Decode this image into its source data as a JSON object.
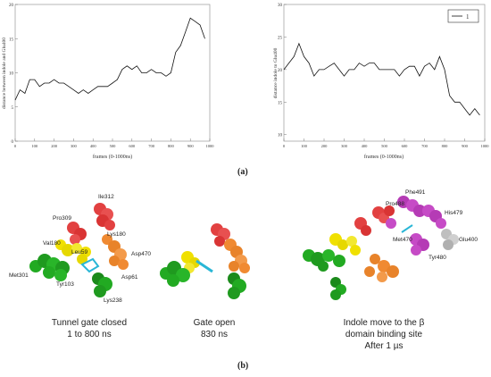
{
  "panel_a": {
    "label": "(a)"
  },
  "panel_b": {
    "label": "(b)"
  },
  "chart_data": [
    {
      "type": "line",
      "title": "",
      "xlabel": "frames (0-1000ns)",
      "ylabel": "distance between indole and Glu400",
      "xlim": [
        0,
        1000
      ],
      "ylim": [
        0,
        20
      ],
      "xticks": [
        0,
        100,
        200,
        300,
        400,
        500,
        600,
        700,
        800,
        900,
        1000
      ],
      "yticks": [
        0,
        5,
        10,
        15,
        20
      ],
      "grid": false,
      "series": [
        {
          "x": [
            0,
            25,
            50,
            75,
            100,
            125,
            150,
            175,
            200,
            225,
            250,
            275,
            300,
            325,
            350,
            375,
            400,
            425,
            450,
            475,
            500,
            525,
            550,
            575,
            600,
            625,
            650,
            675,
            700,
            725,
            750,
            775,
            800,
            825,
            850,
            875,
            900,
            925,
            950,
            975
          ],
          "y": [
            6,
            7.5,
            7,
            9,
            9,
            8,
            8.5,
            8.5,
            9,
            8.5,
            8.5,
            8,
            7.5,
            7,
            7.5,
            7,
            7.5,
            8,
            8,
            8,
            8.5,
            9,
            10.5,
            11,
            10.5,
            11,
            10,
            10,
            10.5,
            10,
            10,
            9.5,
            10,
            13,
            14,
            16,
            18,
            17.5,
            17,
            15
          ]
        }
      ]
    },
    {
      "type": "line",
      "title": "",
      "xlabel": "frames (0-1000ns)",
      "ylabel": "distance indole to Glu400",
      "xlim": [
        0,
        1000
      ],
      "ylim": [
        9,
        30
      ],
      "xticks": [
        0,
        100,
        200,
        300,
        400,
        500,
        600,
        700,
        800,
        900,
        1000
      ],
      "yticks": [
        10,
        15,
        20,
        25,
        30
      ],
      "legend": {
        "position": "top-right",
        "entries": [
          "1"
        ]
      },
      "grid": false,
      "series": [
        {
          "name": "1",
          "x": [
            0,
            25,
            50,
            75,
            100,
            125,
            150,
            175,
            200,
            225,
            250,
            275,
            300,
            325,
            350,
            375,
            400,
            425,
            450,
            475,
            500,
            525,
            550,
            575,
            600,
            625,
            650,
            675,
            700,
            725,
            750,
            775,
            800,
            825,
            850,
            875,
            900,
            925,
            950,
            975
          ],
          "y": [
            20,
            21,
            22,
            24,
            22,
            21,
            19,
            20,
            20,
            20.5,
            21,
            20,
            19,
            20,
            20,
            21,
            20.5,
            21,
            21,
            20,
            20,
            20,
            20,
            19,
            20,
            20.5,
            20.5,
            19,
            20.5,
            21,
            20,
            22,
            20,
            16,
            15,
            15,
            14,
            13,
            14,
            13
          ]
        }
      ]
    }
  ],
  "molecules": [
    {
      "caption_lines": [
        "Tunnel gate closed",
        "1 to 800 ns"
      ],
      "labels": [
        "Ile312",
        "Pro309",
        "Val180",
        "Leu59",
        "Lys180",
        "Asp470",
        "Met301",
        "Tyr103",
        "Asp61",
        "Lys238"
      ]
    },
    {
      "caption_lines": [
        "Gate open",
        "830 ns"
      ],
      "labels": []
    },
    {
      "caption_lines": [
        "Indole move to the β",
        "domain binding site",
        "After 1 µs"
      ],
      "labels": [
        "Phe491",
        "Pro488",
        "His479",
        "Met470",
        "Glu400",
        "Tyr480"
      ]
    }
  ]
}
